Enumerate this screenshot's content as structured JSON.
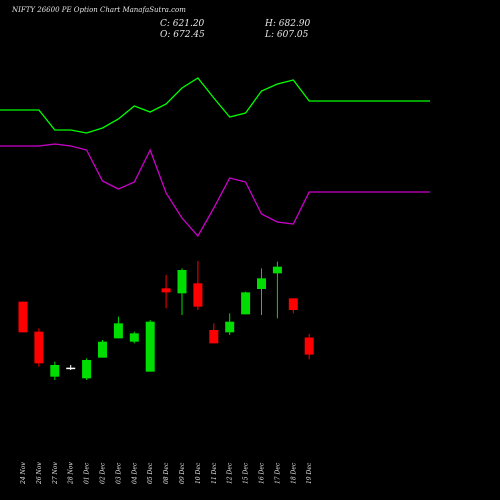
{
  "header": {
    "title": "NIFTY 26600  PE Option  Chart ManafaSutra.com",
    "close": "C: 621.20",
    "open": "O: 672.45",
    "high": "H: 682.90",
    "low": "L: 607.05"
  },
  "colors": {
    "background": "#000000",
    "bull": "#00dd00",
    "bear": "#ff0000",
    "neutral": "#ffffff",
    "line_upper": "#00ff00",
    "line_lower": "#cc00cc"
  },
  "chart_data": {
    "type": "candlestick",
    "categories": [
      "24 Nov",
      "26 Nov",
      "27 Nov",
      "28 Nov",
      "01 Dec",
      "02 Dec",
      "03 Dec",
      "04 Dec",
      "05 Dec",
      "08 Dec",
      "09 Dec",
      "10 Dec",
      "11 Dec",
      "12 Dec",
      "15 Dec",
      "16 Dec",
      "17 Dec",
      "18 Dec",
      "19 Dec"
    ],
    "ohlc": [
      {
        "o": 780,
        "h": 780,
        "l": 688,
        "c": 688
      },
      {
        "o": 690,
        "h": 700,
        "l": 585,
        "c": 595
      },
      {
        "o": 555,
        "h": 600,
        "l": 545,
        "c": 590
      },
      {
        "o": 580,
        "h": 590,
        "l": 575,
        "c": 582
      },
      {
        "o": 550,
        "h": 610,
        "l": 545,
        "c": 605
      },
      {
        "o": 612,
        "h": 665,
        "l": 612,
        "c": 660
      },
      {
        "o": 670,
        "h": 735,
        "l": 670,
        "c": 715
      },
      {
        "o": 660,
        "h": 690,
        "l": 655,
        "c": 685
      },
      {
        "o": 570,
        "h": 725,
        "l": 570,
        "c": 720
      },
      {
        "o": 820,
        "h": 860,
        "l": 760,
        "c": 808
      },
      {
        "o": 805,
        "h": 880,
        "l": 740,
        "c": 875
      },
      {
        "o": 835,
        "h": 902,
        "l": 755,
        "c": 765
      },
      {
        "o": 695,
        "h": 715,
        "l": 655,
        "c": 655
      },
      {
        "o": 688,
        "h": 745,
        "l": 680,
        "c": 720
      },
      {
        "o": 742,
        "h": 810,
        "l": 742,
        "c": 808
      },
      {
        "o": 818,
        "h": 880,
        "l": 740,
        "c": 850
      },
      {
        "o": 865,
        "h": 900,
        "l": 730,
        "c": 885
      },
      {
        "o": 790,
        "h": 790,
        "l": 745,
        "c": 755
      },
      {
        "o": 672.45,
        "h": 682.9,
        "l": 607.05,
        "c": 621.2
      }
    ],
    "lines": [
      {
        "color": "#00ff00",
        "values": [
          110,
          110,
          130,
          130,
          133,
          128,
          119,
          106,
          112,
          104,
          88,
          78,
          98,
          117,
          113,
          91,
          84,
          80,
          101
        ]
      },
      {
        "color": "#cc00cc",
        "values": [
          146,
          146,
          144,
          146,
          150,
          181,
          189,
          182,
          150,
          193,
          218,
          236,
          208,
          178,
          182,
          214,
          222,
          224,
          192
        ]
      }
    ],
    "ylim": [
      500,
      920
    ],
    "grid": false
  }
}
